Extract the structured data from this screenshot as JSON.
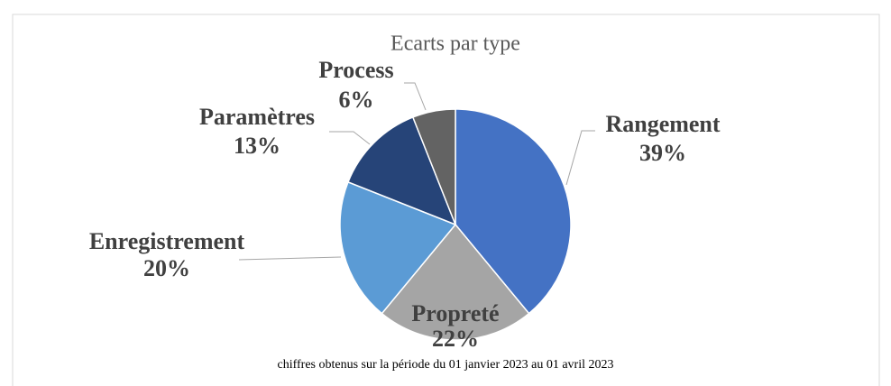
{
  "chart_data": {
    "type": "pie",
    "title": "Ecarts par type",
    "categories": [
      "Rangement",
      "Propreté",
      "Enregistrement",
      "Paramètres",
      "Process"
    ],
    "values": [
      39,
      22,
      20,
      13,
      6
    ],
    "value_labels": [
      "39%",
      "22%",
      "20%",
      "13%",
      "6%"
    ],
    "colors": [
      "#4472c4",
      "#a5a5a5",
      "#5b9bd5",
      "#264478",
      "#636363"
    ],
    "note": "chiffres obtenus sur la période du 01 janvier 2023 au 01 avril 2023"
  }
}
